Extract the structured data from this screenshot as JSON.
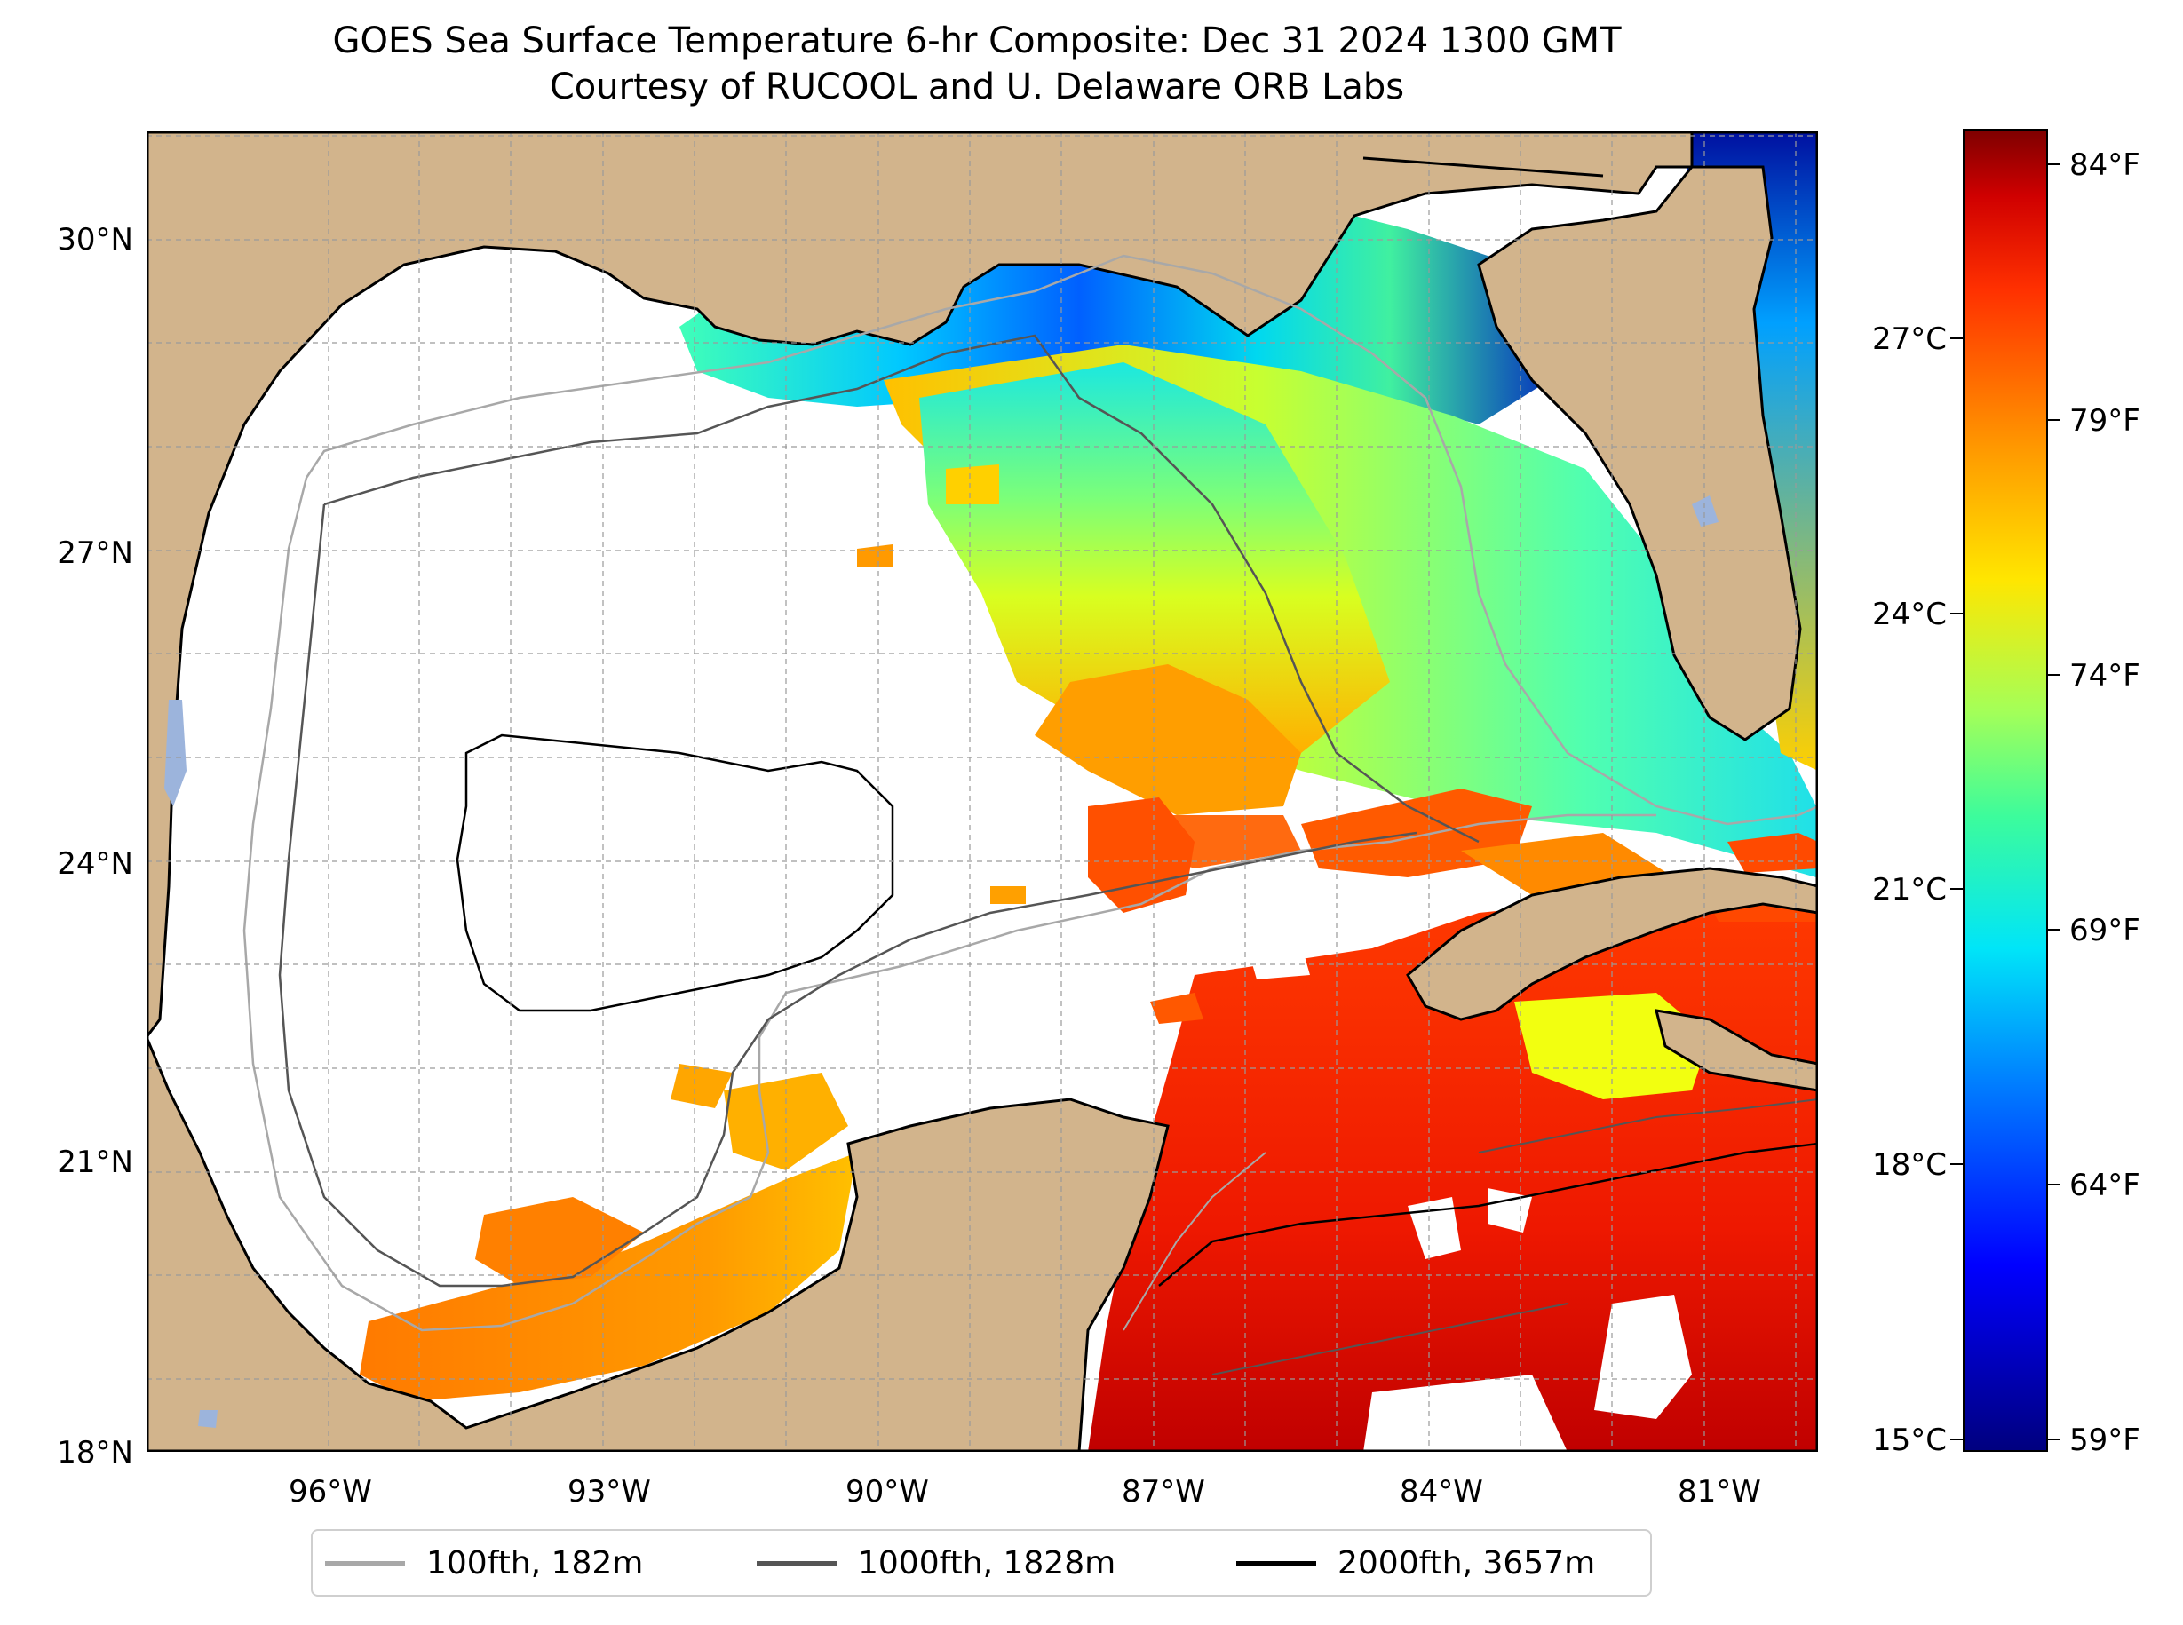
{
  "title": {
    "line1": "GOES Sea Surface Temperature 6-hr Composite: Dec 31 2024 1300 GMT",
    "line2": "Courtesy of RUCOOL and U. Delaware ORB Labs"
  },
  "map": {
    "region": "Gulf of Mexico",
    "lat_ticks": [
      "30°N",
      "27°N",
      "24°N",
      "21°N",
      "18°N"
    ],
    "lon_ticks": [
      "96°W",
      "93°W",
      "90°W",
      "87°W",
      "84°W",
      "81°W"
    ],
    "land_color": "#d2b48c",
    "water_no_data_color": "#ffffff",
    "gridlines": "dashed-gray"
  },
  "colorbar": {
    "colormap": "jet",
    "celsius_ticks": [
      "27°C",
      "24°C",
      "21°C",
      "18°C",
      "15°C"
    ],
    "fahrenheit_ticks": [
      "84°F",
      "79°F",
      "74°F",
      "69°F",
      "64°F",
      "59°F"
    ]
  },
  "legend": {
    "items": [
      {
        "label": "100fth, 182m",
        "color": "#a8a8a8"
      },
      {
        "label": "1000fth, 1828m",
        "color": "#555555"
      },
      {
        "label": "2000fth, 3657m",
        "color": "#000000"
      }
    ]
  }
}
